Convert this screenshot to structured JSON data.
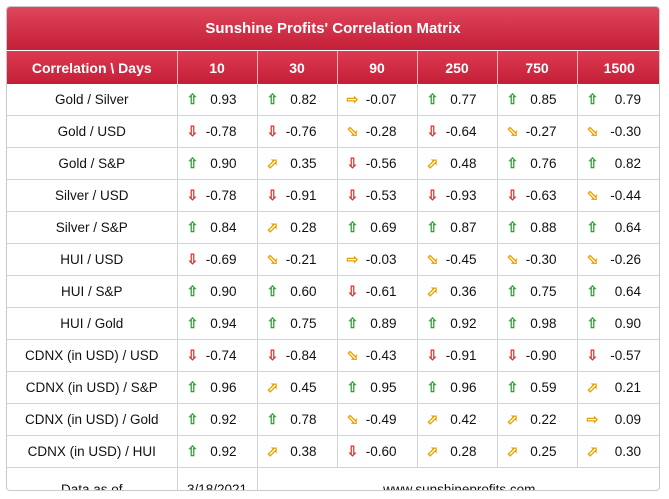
{
  "title": "Sunshine Profits' Correlation Matrix",
  "header": {
    "corner": "Correlation \\ Days",
    "days": [
      "10",
      "30",
      "90",
      "250",
      "750",
      "1500"
    ]
  },
  "rows": [
    {
      "label": "Gold / Silver",
      "cells": [
        {
          "dir": "up",
          "v": "0.93"
        },
        {
          "dir": "up",
          "v": "0.82"
        },
        {
          "dir": "right",
          "v": "-0.07"
        },
        {
          "dir": "up",
          "v": "0.77"
        },
        {
          "dir": "up",
          "v": "0.85"
        },
        {
          "dir": "up",
          "v": "0.79"
        }
      ]
    },
    {
      "label": "Gold / USD",
      "cells": [
        {
          "dir": "down",
          "v": "-0.78"
        },
        {
          "dir": "down",
          "v": "-0.76"
        },
        {
          "dir": "downright",
          "v": "-0.28"
        },
        {
          "dir": "down",
          "v": "-0.64"
        },
        {
          "dir": "downright",
          "v": "-0.27"
        },
        {
          "dir": "downright",
          "v": "-0.30"
        }
      ]
    },
    {
      "label": "Gold / S&P",
      "cells": [
        {
          "dir": "up",
          "v": "0.90"
        },
        {
          "dir": "upright",
          "v": "0.35"
        },
        {
          "dir": "down",
          "v": "-0.56"
        },
        {
          "dir": "upright",
          "v": "0.48"
        },
        {
          "dir": "up",
          "v": "0.76"
        },
        {
          "dir": "up",
          "v": "0.82"
        }
      ]
    },
    {
      "label": "Silver / USD",
      "cells": [
        {
          "dir": "down",
          "v": "-0.78"
        },
        {
          "dir": "down",
          "v": "-0.91"
        },
        {
          "dir": "down",
          "v": "-0.53"
        },
        {
          "dir": "down",
          "v": "-0.93"
        },
        {
          "dir": "down",
          "v": "-0.63"
        },
        {
          "dir": "downright",
          "v": "-0.44"
        }
      ]
    },
    {
      "label": "Silver / S&P",
      "cells": [
        {
          "dir": "up",
          "v": "0.84"
        },
        {
          "dir": "upright",
          "v": "0.28"
        },
        {
          "dir": "up",
          "v": "0.69"
        },
        {
          "dir": "up",
          "v": "0.87"
        },
        {
          "dir": "up",
          "v": "0.88"
        },
        {
          "dir": "up",
          "v": "0.64"
        }
      ]
    },
    {
      "label": "HUI / USD",
      "cells": [
        {
          "dir": "down",
          "v": "-0.69"
        },
        {
          "dir": "downright",
          "v": "-0.21"
        },
        {
          "dir": "right",
          "v": "-0.03"
        },
        {
          "dir": "downright",
          "v": "-0.45"
        },
        {
          "dir": "downright",
          "v": "-0.30"
        },
        {
          "dir": "downright",
          "v": "-0.26"
        }
      ]
    },
    {
      "label": "HUI / S&P",
      "cells": [
        {
          "dir": "up",
          "v": "0.90"
        },
        {
          "dir": "up",
          "v": "0.60"
        },
        {
          "dir": "down",
          "v": "-0.61"
        },
        {
          "dir": "upright",
          "v": "0.36"
        },
        {
          "dir": "up",
          "v": "0.75"
        },
        {
          "dir": "up",
          "v": "0.64"
        }
      ]
    },
    {
      "label": "HUI / Gold",
      "cells": [
        {
          "dir": "up",
          "v": "0.94"
        },
        {
          "dir": "up",
          "v": "0.75"
        },
        {
          "dir": "up",
          "v": "0.89"
        },
        {
          "dir": "up",
          "v": "0.92"
        },
        {
          "dir": "up",
          "v": "0.98"
        },
        {
          "dir": "up",
          "v": "0.90"
        }
      ]
    },
    {
      "label": "CDNX (in USD) / USD",
      "cells": [
        {
          "dir": "down",
          "v": "-0.74"
        },
        {
          "dir": "down",
          "v": "-0.84"
        },
        {
          "dir": "downright",
          "v": "-0.43"
        },
        {
          "dir": "down",
          "v": "-0.91"
        },
        {
          "dir": "down",
          "v": "-0.90"
        },
        {
          "dir": "down",
          "v": "-0.57"
        }
      ]
    },
    {
      "label": "CDNX (in USD) / S&P",
      "cells": [
        {
          "dir": "up",
          "v": "0.96"
        },
        {
          "dir": "upright",
          "v": "0.45"
        },
        {
          "dir": "up",
          "v": "0.95"
        },
        {
          "dir": "up",
          "v": "0.96"
        },
        {
          "dir": "up",
          "v": "0.59"
        },
        {
          "dir": "upright",
          "v": "0.21"
        }
      ]
    },
    {
      "label": "CDNX (in USD) / Gold",
      "cells": [
        {
          "dir": "up",
          "v": "0.92"
        },
        {
          "dir": "up",
          "v": "0.78"
        },
        {
          "dir": "downright",
          "v": "-0.49"
        },
        {
          "dir": "upright",
          "v": "0.42"
        },
        {
          "dir": "upright",
          "v": "0.22"
        },
        {
          "dir": "right",
          "v": "0.09"
        }
      ]
    },
    {
      "label": "CDNX (in USD) / HUI",
      "cells": [
        {
          "dir": "up",
          "v": "0.92"
        },
        {
          "dir": "upright",
          "v": "0.38"
        },
        {
          "dir": "down",
          "v": "-0.60"
        },
        {
          "dir": "upright",
          "v": "0.28"
        },
        {
          "dir": "upright",
          "v": "0.25"
        },
        {
          "dir": "upright",
          "v": "0.30"
        }
      ]
    }
  ],
  "footer": {
    "label": "Data as of",
    "date": "3/18/2021",
    "site": "www.sunshineprofits.com"
  },
  "icons": {
    "up": {
      "name": "arrow-up-icon",
      "glyph": "⇧"
    },
    "down": {
      "name": "arrow-down-icon",
      "glyph": "⇩"
    },
    "right": {
      "name": "arrow-right-icon",
      "glyph": "⇨"
    },
    "upright": {
      "name": "arrow-up-right-icon",
      "glyph": "⬀"
    },
    "downright": {
      "name": "arrow-down-right-icon",
      "glyph": "⬂"
    }
  },
  "colors": {
    "header_red": "#c41f38",
    "up_green": "#2f9e2f",
    "down_red": "#d83535",
    "neutral_orange": "#e2a100"
  }
}
